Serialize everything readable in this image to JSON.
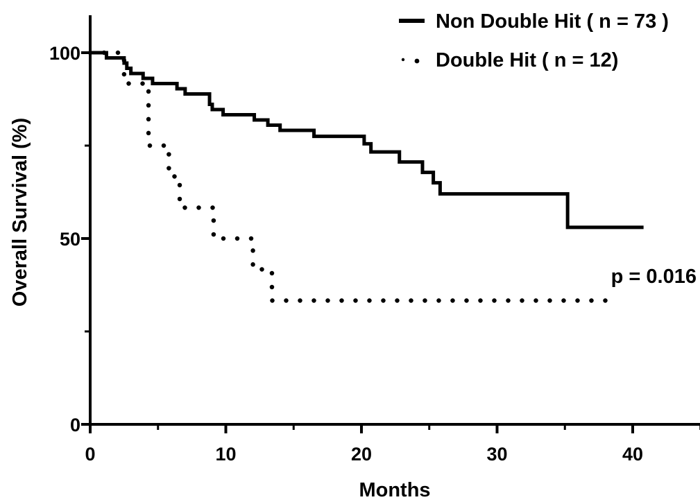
{
  "chart_data": {
    "type": "line",
    "title": "",
    "xlabel": "Months",
    "ylabel": "Overall Survival (%)",
    "xlim": [
      0,
      45
    ],
    "ylim": [
      0,
      110
    ],
    "x_ticks": [
      0,
      10,
      20,
      30,
      40
    ],
    "y_ticks": [
      0,
      50,
      100
    ],
    "x_tick_labels": [
      "0",
      "10",
      "20",
      "30",
      "40"
    ],
    "y_tick_labels": [
      "0",
      "50",
      "100"
    ],
    "grid": false,
    "legend_position": "top-right",
    "series": [
      {
        "name": "Non Double Hit ( n = 73 )",
        "style": "solid",
        "color": "#000000",
        "steps": [
          [
            0,
            100
          ],
          [
            1.2,
            98.6
          ],
          [
            2.5,
            97.2
          ],
          [
            2.7,
            95.8
          ],
          [
            3.0,
            94.4
          ],
          [
            3.9,
            93.1
          ],
          [
            4.6,
            91.7
          ],
          [
            6.4,
            90.3
          ],
          [
            7.0,
            88.9
          ],
          [
            8.8,
            86.1
          ],
          [
            9.0,
            84.7
          ],
          [
            9.8,
            83.3
          ],
          [
            12.1,
            81.9
          ],
          [
            13.1,
            80.5
          ],
          [
            14.0,
            79.1
          ],
          [
            16.5,
            77.5
          ],
          [
            20.2,
            75.5
          ],
          [
            20.7,
            73.3
          ],
          [
            22.8,
            70.6
          ],
          [
            24.5,
            67.8
          ],
          [
            25.3,
            65.0
          ],
          [
            25.8,
            62.0
          ],
          [
            35.2,
            53.0
          ],
          [
            40.8,
            53.0
          ]
        ]
      },
      {
        "name": "Double Hit ( n = 12)",
        "style": "dotted",
        "color": "#000000",
        "steps": [
          [
            0,
            100
          ],
          [
            2.5,
            91.7
          ],
          [
            4.3,
            75.0
          ],
          [
            5.8,
            66.7
          ],
          [
            6.6,
            58.3
          ],
          [
            9.1,
            50.0
          ],
          [
            12.0,
            41.7
          ],
          [
            13.4,
            33.3
          ],
          [
            39.0,
            33.3
          ]
        ]
      }
    ],
    "annotation": "p = 0.016"
  }
}
